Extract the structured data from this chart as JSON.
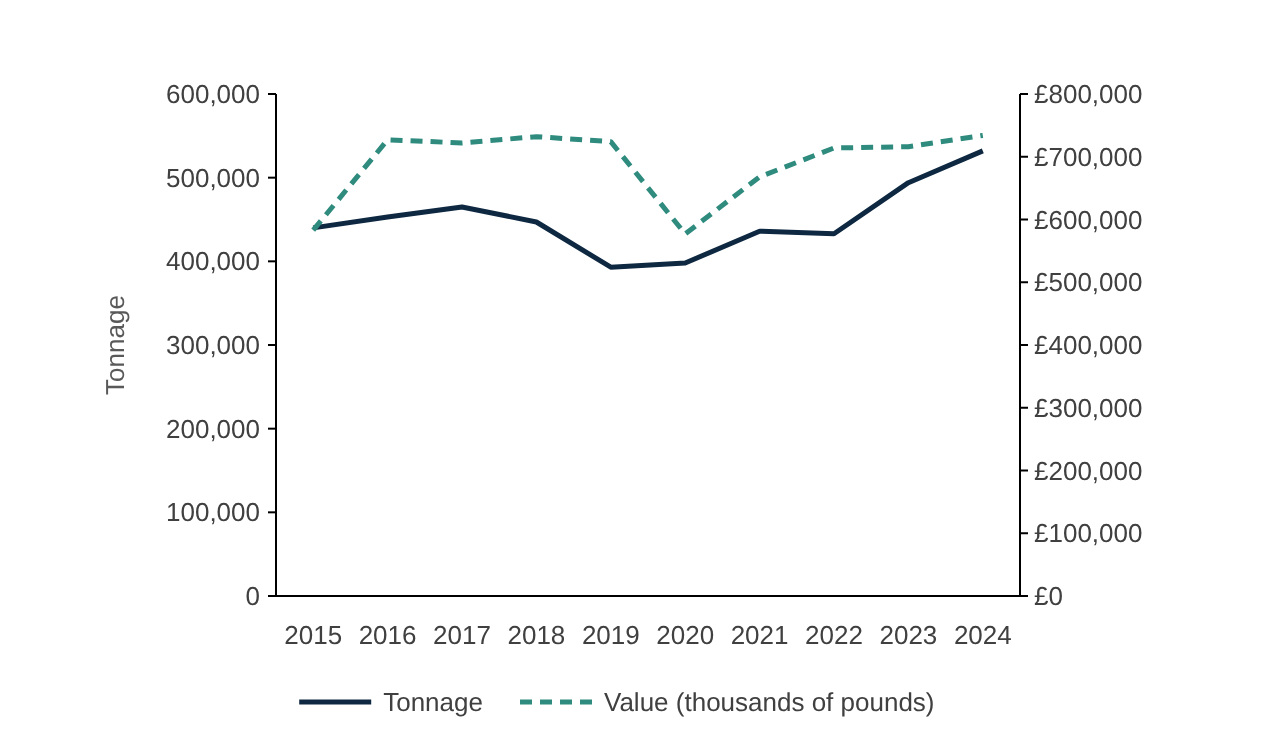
{
  "chart_data": {
    "type": "line",
    "ylabel": "Tonnage",
    "categories": [
      "2015",
      "2016",
      "2017",
      "2018",
      "2019",
      "2020",
      "2021",
      "2022",
      "2023",
      "2024"
    ],
    "series": [
      {
        "name": "Tonnage",
        "color": "#0e2841",
        "values": [
          440000,
          453000,
          465000,
          447000,
          393000,
          398000,
          436000,
          433000,
          494000,
          532000
        ],
        "line_style": "solid"
      },
      {
        "name": "Value (thousands of pounds)",
        "color": "#2e8b7e",
        "axis": "y2",
        "values": [
          583000,
          727000,
          722000,
          732000,
          724000,
          577000,
          668000,
          714000,
          716000,
          734000
        ],
        "line_style": "dashed"
      }
    ],
    "ylim": [
      0,
      600000
    ],
    "yticks": [
      {
        "value": 0,
        "label": "0"
      },
      {
        "value": 100000,
        "label": "100,000"
      },
      {
        "value": 200000,
        "label": "200,000"
      },
      {
        "value": 300000,
        "label": "300,000"
      },
      {
        "value": 400000,
        "label": "400,000"
      },
      {
        "value": 500000,
        "label": "500,000"
      },
      {
        "value": 600000,
        "label": "600,000"
      }
    ],
    "y2lim": [
      0,
      800000
    ],
    "y2ticks": [
      {
        "value": 0,
        "label": "£0"
      },
      {
        "value": 100000,
        "label": "£100,000"
      },
      {
        "value": 200000,
        "label": "£200,000"
      },
      {
        "value": 300000,
        "label": "£300,000"
      },
      {
        "value": 400000,
        "label": "£400,000"
      },
      {
        "value": 500000,
        "label": "£500,000"
      },
      {
        "value": 600000,
        "label": "£600,000"
      },
      {
        "value": 700000,
        "label": "£700,000"
      },
      {
        "value": 800000,
        "label": "£800,000"
      }
    ],
    "grid": false,
    "legend": "bottom",
    "marker": "none"
  }
}
